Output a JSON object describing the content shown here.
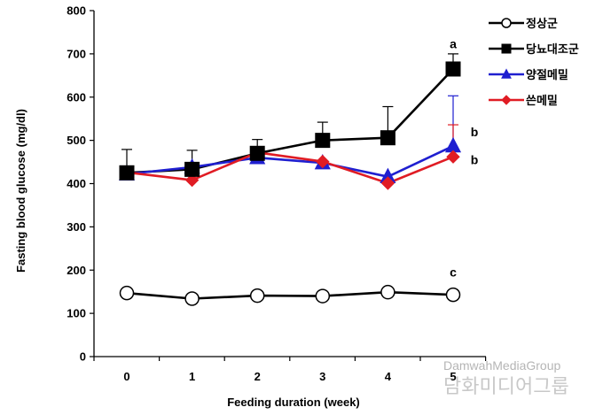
{
  "chart_data": {
    "type": "line",
    "title": "",
    "xlabel": "Feeding duration  (week)",
    "ylabel": "Fasting blood glucose  (mg/dl)",
    "x": [
      0,
      1,
      2,
      3,
      4,
      5
    ],
    "ylim": [
      0,
      800
    ],
    "yticks": [
      0,
      100,
      200,
      300,
      400,
      500,
      600,
      700,
      800
    ],
    "grid": false,
    "legend_position": "top-right",
    "series": [
      {
        "name": "정상군",
        "values": [
          147,
          134,
          141,
          140,
          149,
          143
        ],
        "errors": [
          0,
          0,
          0,
          0,
          0,
          0
        ],
        "color": "#000000",
        "marker": "circle-open"
      },
      {
        "name": "당뇨대조군",
        "values": [
          425,
          433,
          470,
          500,
          506,
          665
        ],
        "errors": [
          54,
          44,
          32,
          42,
          72,
          35
        ],
        "color": "#000000",
        "marker": "square"
      },
      {
        "name": "양절메밀",
        "values": [
          422,
          438,
          460,
          448,
          416,
          487
        ],
        "errors": [
          0,
          0,
          0,
          0,
          0,
          116
        ],
        "color": "#1f1fd0",
        "marker": "triangle"
      },
      {
        "name": "쓴메밀",
        "values": [
          426,
          408,
          472,
          451,
          401,
          462
        ],
        "errors": [
          0,
          0,
          0,
          0,
          0,
          74
        ],
        "color": "#e01c24",
        "marker": "diamond"
      }
    ],
    "annotations": [
      {
        "text": "a",
        "x": 5,
        "y": 723
      },
      {
        "text": "b",
        "x": 5,
        "y": 520
      },
      {
        "text": "b",
        "x": 5,
        "y": 455
      },
      {
        "text": "c",
        "x": 5,
        "y": 195
      }
    ]
  },
  "watermark": {
    "line1": "DamwahMediaGroup",
    "line2": "담화미디어그룹"
  }
}
